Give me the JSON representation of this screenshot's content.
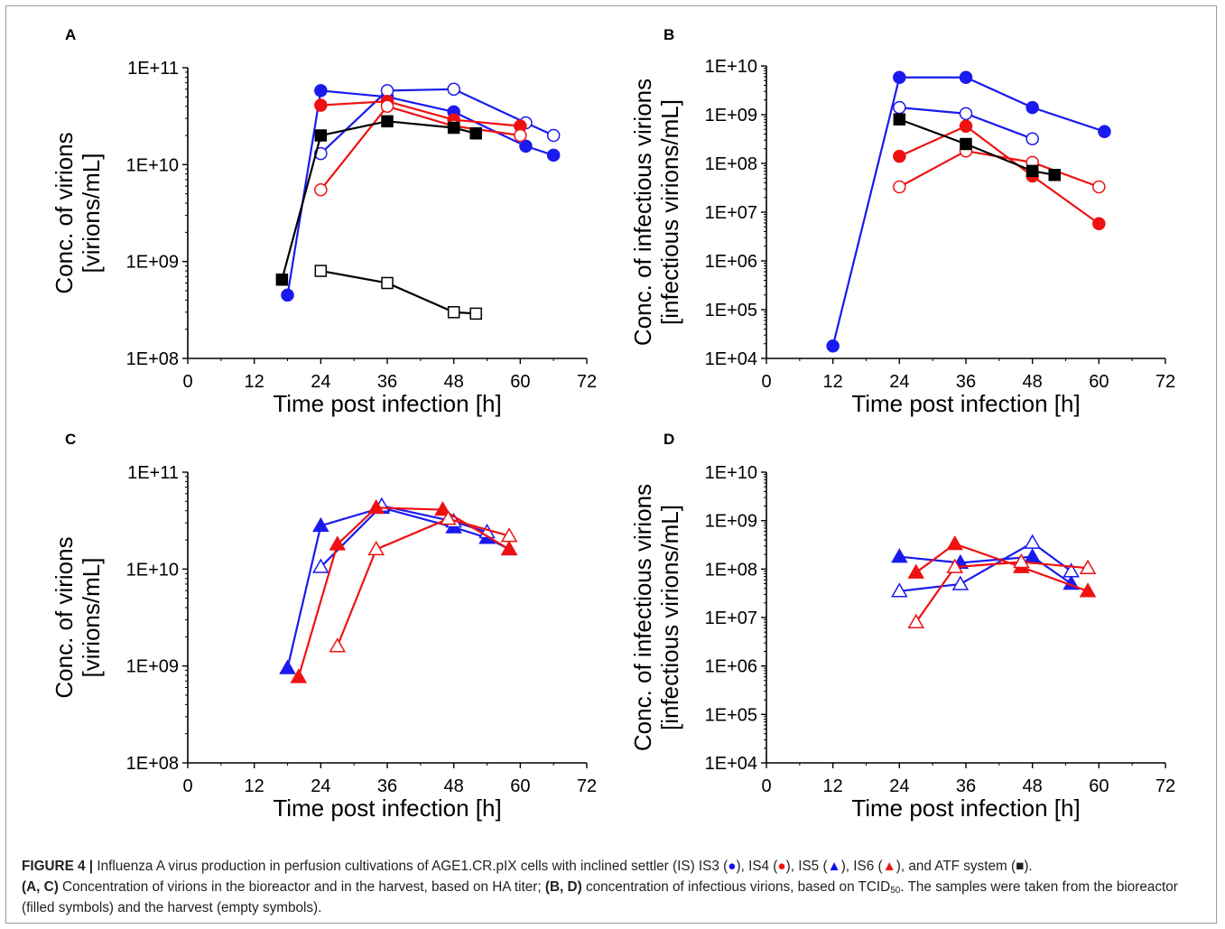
{
  "colors": {
    "blue": "#1a1aee",
    "red": "#ee1111",
    "black": "#000000"
  },
  "chart_data": [
    {
      "panel": "A",
      "type": "line",
      "xlabel": "Time post infection [h]",
      "ylabel_line1": "Conc. of virions",
      "ylabel_line2": "[virions/mL]",
      "yscale": "log",
      "xlim": [
        0,
        72
      ],
      "ylim": [
        100000000.0,
        100000000000.0
      ],
      "xticks": [
        0,
        12,
        24,
        36,
        48,
        60,
        72
      ],
      "xtick_labels": [
        "0",
        "12",
        "24",
        "36",
        "48",
        "60",
        "72"
      ],
      "yticks": [
        100000000.0,
        1000000000.0,
        10000000000.0,
        100000000000.0
      ],
      "ytick_labels": [
        "1E+08",
        "1E+09",
        "1E+10",
        "1E+11"
      ],
      "series": [
        {
          "color": "blue",
          "marker": "circle",
          "filled": true,
          "x": [
            18,
            24,
            36,
            48,
            61,
            66
          ],
          "y": [
            450000000.0,
            58000000000.0,
            50000000000.0,
            35000000000.0,
            15500000000.0,
            12500000000.0
          ]
        },
        {
          "color": "blue",
          "marker": "circle",
          "filled": false,
          "x": [
            24,
            36,
            48,
            61,
            66
          ],
          "y": [
            13000000000.0,
            58000000000.0,
            60000000000.0,
            27000000000.0,
            20000000000.0
          ]
        },
        {
          "color": "red",
          "marker": "circle",
          "filled": true,
          "x": [
            24,
            36,
            48,
            60
          ],
          "y": [
            41000000000.0,
            45000000000.0,
            29000000000.0,
            25000000000.0
          ]
        },
        {
          "color": "red",
          "marker": "circle",
          "filled": false,
          "x": [
            24,
            36,
            48,
            60
          ],
          "y": [
            5500000000.0,
            40000000000.0,
            25000000000.0,
            20000000000.0
          ]
        },
        {
          "color": "black",
          "marker": "square",
          "filled": true,
          "x": [
            17,
            24,
            36,
            48,
            52
          ],
          "y": [
            650000000.0,
            20000000000.0,
            28000000000.0,
            24000000000.0,
            21000000000.0
          ]
        },
        {
          "color": "black",
          "marker": "square",
          "filled": false,
          "x": [
            24,
            36,
            48,
            52
          ],
          "y": [
            800000000.0,
            600000000.0,
            300000000.0,
            290000000.0
          ]
        }
      ]
    },
    {
      "panel": "B",
      "type": "line",
      "xlabel": "Time post infection [h]",
      "ylabel_line1": "Conc. of infectious virions",
      "ylabel_line2": "[infectious virions/mL]",
      "yscale": "log",
      "xlim": [
        0,
        72
      ],
      "ylim": [
        10000.0,
        10000000000.0
      ],
      "xticks": [
        0,
        12,
        24,
        36,
        48,
        60,
        72
      ],
      "xtick_labels": [
        "0",
        "12",
        "24",
        "36",
        "48",
        "60",
        "72"
      ],
      "yticks": [
        10000.0,
        100000.0,
        1000000.0,
        10000000.0,
        100000000.0,
        1000000000.0,
        10000000000.0
      ],
      "ytick_labels": [
        "1E+04",
        "1E+05",
        "1E+06",
        "1E+07",
        "1E+08",
        "1E+09",
        "1E+10"
      ],
      "series": [
        {
          "color": "blue",
          "marker": "circle",
          "filled": true,
          "x": [
            12,
            24,
            36,
            48,
            61
          ],
          "y": [
            18000.0,
            5800000000.0,
            5800000000.0,
            1400000000.0,
            450000000.0
          ]
        },
        {
          "color": "blue",
          "marker": "circle",
          "filled": false,
          "x": [
            24,
            36,
            48
          ],
          "y": [
            1400000000.0,
            1050000000.0,
            320000000.0
          ]
        },
        {
          "color": "red",
          "marker": "circle",
          "filled": true,
          "x": [
            24,
            36,
            48,
            60
          ],
          "y": [
            140000000.0,
            580000000.0,
            55000000.0,
            5800000.0
          ]
        },
        {
          "color": "red",
          "marker": "circle",
          "filled": false,
          "x": [
            24,
            36,
            48,
            60
          ],
          "y": [
            33000000.0,
            180000000.0,
            105000000.0,
            33000000.0
          ]
        },
        {
          "color": "black",
          "marker": "square",
          "filled": true,
          "x": [
            24,
            36,
            48,
            52
          ],
          "y": [
            800000000.0,
            250000000.0,
            70000000.0,
            58000000.0
          ]
        }
      ]
    },
    {
      "panel": "C",
      "type": "line",
      "xlabel": "Time post infection [h]",
      "ylabel_line1": "Conc. of virions",
      "ylabel_line2": "[virions/mL]",
      "yscale": "log",
      "xlim": [
        0,
        72
      ],
      "ylim": [
        100000000.0,
        100000000000.0
      ],
      "xticks": [
        0,
        12,
        24,
        36,
        48,
        60,
        72
      ],
      "xtick_labels": [
        "0",
        "12",
        "24",
        "36",
        "48",
        "60",
        "72"
      ],
      "yticks": [
        100000000.0,
        1000000000.0,
        10000000000.0,
        100000000000.0
      ],
      "ytick_labels": [
        "1E+08",
        "1E+09",
        "1E+10",
        "1E+11"
      ],
      "series": [
        {
          "color": "blue",
          "marker": "triangle",
          "filled": true,
          "x": [
            18,
            24,
            35,
            48,
            54,
            58
          ],
          "y": [
            950000000.0,
            28000000000.0,
            43000000000.0,
            27000000000.0,
            21000000000.0,
            16000000000.0
          ]
        },
        {
          "color": "blue",
          "marker": "triangle",
          "filled": false,
          "x": [
            24,
            35,
            48,
            54
          ],
          "y": [
            10500000000.0,
            45000000000.0,
            31000000000.0,
            24000000000.0
          ]
        },
        {
          "color": "red",
          "marker": "triangle",
          "filled": true,
          "x": [
            20,
            27,
            34,
            46,
            58
          ],
          "y": [
            770000000.0,
            18000000000.0,
            43000000000.0,
            41000000000.0,
            16000000000.0
          ]
        },
        {
          "color": "red",
          "marker": "triangle",
          "filled": false,
          "x": [
            27,
            34,
            47,
            58
          ],
          "y": [
            1600000000.0,
            16000000000.0,
            33000000000.0,
            22000000000.0
          ]
        }
      ]
    },
    {
      "panel": "D",
      "type": "line",
      "xlabel": "Time post infection [h]",
      "ylabel_line1": "Conc. of infectious virions",
      "ylabel_line2": "[infectious virions/mL]",
      "yscale": "log",
      "xlim": [
        0,
        72
      ],
      "ylim": [
        10000.0,
        10000000000.0
      ],
      "xticks": [
        0,
        12,
        24,
        36,
        48,
        60,
        72
      ],
      "xtick_labels": [
        "0",
        "12",
        "24",
        "36",
        "48",
        "60",
        "72"
      ],
      "yticks": [
        10000.0,
        100000.0,
        1000000.0,
        10000000.0,
        100000000.0,
        1000000000.0,
        10000000000.0
      ],
      "ytick_labels": [
        "1E+04",
        "1E+05",
        "1E+06",
        "1E+07",
        "1E+08",
        "1E+09",
        "1E+10"
      ],
      "series": [
        {
          "color": "blue",
          "marker": "triangle",
          "filled": true,
          "x": [
            24,
            35,
            48,
            55
          ],
          "y": [
            180000000.0,
            135000000.0,
            180000000.0,
            50000000.0
          ]
        },
        {
          "color": "blue",
          "marker": "triangle",
          "filled": false,
          "x": [
            24,
            35,
            48,
            55
          ],
          "y": [
            35000000.0,
            49000000.0,
            350000000.0,
            90000000.0
          ]
        },
        {
          "color": "red",
          "marker": "triangle",
          "filled": true,
          "x": [
            27,
            34,
            46,
            58
          ],
          "y": [
            85000000.0,
            330000000.0,
            110000000.0,
            35000000.0
          ]
        },
        {
          "color": "red",
          "marker": "triangle",
          "filled": false,
          "x": [
            27,
            34,
            46,
            58
          ],
          "y": [
            8000000.0,
            110000000.0,
            140000000.0,
            105000000.0
          ]
        }
      ]
    }
  ],
  "caption": {
    "figure_label": "FIGURE 4 |",
    "line1_text": "Influenza A virus production in perfusion cultivations of AGE1.CR.pIX cells with inclined settler (IS) IS3 (",
    "is3_symbol": "●",
    "is4_prefix": "), IS4 (",
    "is4_symbol": "●",
    "is5_prefix": "), IS5 (",
    "is5_symbol": "▲",
    "is6_prefix": "), IS6 (",
    "is6_symbol": "▲",
    "atf_prefix": "), and ATF system (",
    "atf_symbol": "■",
    "atf_suffix": ").",
    "ac_label": "(A, C)",
    "ac_text": " Concentration of virions in the bioreactor and in the harvest, based on HA titer; ",
    "bd_label": "(B, D)",
    "bd_text": " concentration of infectious virions, based on TCID",
    "tcid_sub": "50",
    "end_text": ". The samples were taken from the bioreactor (filled symbols) and the harvest (empty symbols)."
  }
}
